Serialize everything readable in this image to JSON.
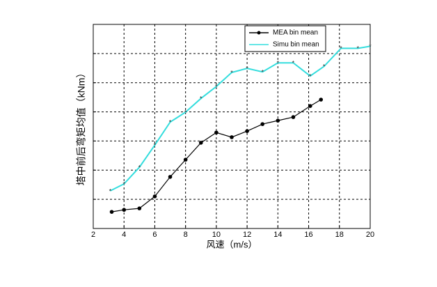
{
  "chart_data": {
    "type": "line",
    "xlabel": "风速（m/s）",
    "ylabel": "塔中前后弯矩均值（kNm）",
    "xlim": [
      2,
      20
    ],
    "xticks": [
      2,
      4,
      6,
      8,
      10,
      12,
      14,
      16,
      18,
      20
    ],
    "ylim": [
      0,
      7
    ],
    "yticks": [
      0,
      1,
      2,
      3,
      4,
      5,
      6,
      7
    ],
    "ytick_labels_shown": false,
    "grid": true,
    "legend": "top",
    "series": [
      {
        "name": "MEA bin mean",
        "color": "#000000",
        "x": [
          3.2,
          4,
          5,
          6,
          7,
          8,
          9,
          10,
          11,
          12,
          13,
          14,
          15,
          16.1,
          16.8
        ],
        "values": [
          0.57,
          0.64,
          0.69,
          1.1,
          1.77,
          2.36,
          2.94,
          3.29,
          3.13,
          3.34,
          3.58,
          3.7,
          3.82,
          4.2,
          4.42
        ]
      },
      {
        "name": "Simu bin mean",
        "color": "#33dddd",
        "x": [
          3.1,
          4,
          5,
          6,
          7,
          8,
          9,
          10,
          11,
          12,
          13,
          14,
          15,
          16.1,
          17,
          18.1,
          19.2,
          20
        ],
        "values": [
          1.29,
          1.53,
          2.1,
          2.86,
          3.65,
          3.99,
          4.46,
          4.87,
          5.35,
          5.49,
          5.37,
          5.68,
          5.68,
          5.23,
          5.56,
          6.18,
          6.18,
          6.25
        ]
      }
    ]
  }
}
